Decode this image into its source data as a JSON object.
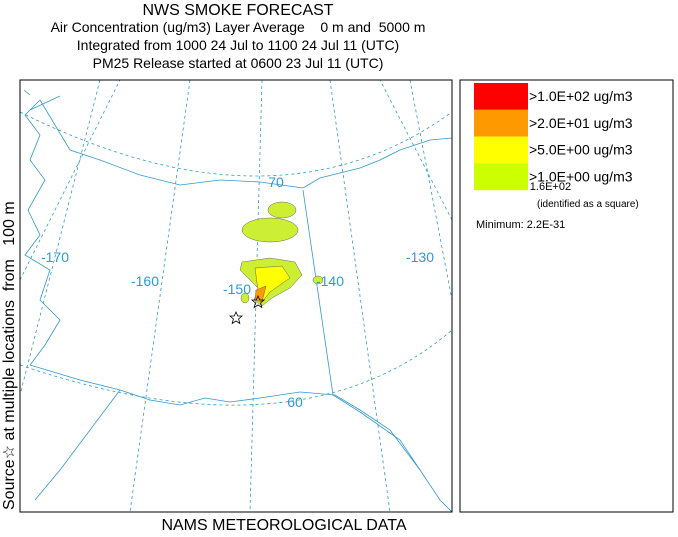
{
  "header": {
    "title": "NWS SMOKE FORECAST",
    "lines": [
      "Air Concentration (ug/m3) Layer Average    0 m and  5000 m",
      "Integrated from 1000 24 Jul to 1100 24 Jul 11 (UTC)",
      "PM25 Release started at 0600 23 Jul 11 (UTC)"
    ]
  },
  "side_label": "Source☆ at multiple locations  from   100 m",
  "footer": "NAMS METEOROLOGICAL DATA",
  "map": {
    "labels": [
      "-170",
      "-160",
      "-150",
      "-140",
      "-130",
      "70",
      "60"
    ]
  },
  "legend": {
    "items": [
      {
        "label": ">1.0E+02 ug/m3",
        "color": "#ff0000"
      },
      {
        "label": ">2.0E+01 ug/m3",
        "color": "#ff9900"
      },
      {
        "label": ">5.0E+00 ug/m3",
        "color": "#ffff00"
      },
      {
        "label": ">1.0E+00 ug/m3",
        "color": "#ccff00"
      }
    ],
    "maximum": "Maximum: 1.6E+02",
    "maximum_note": "(identified as a square)",
    "minimum": "Minimum: 2.2E-31"
  }
}
